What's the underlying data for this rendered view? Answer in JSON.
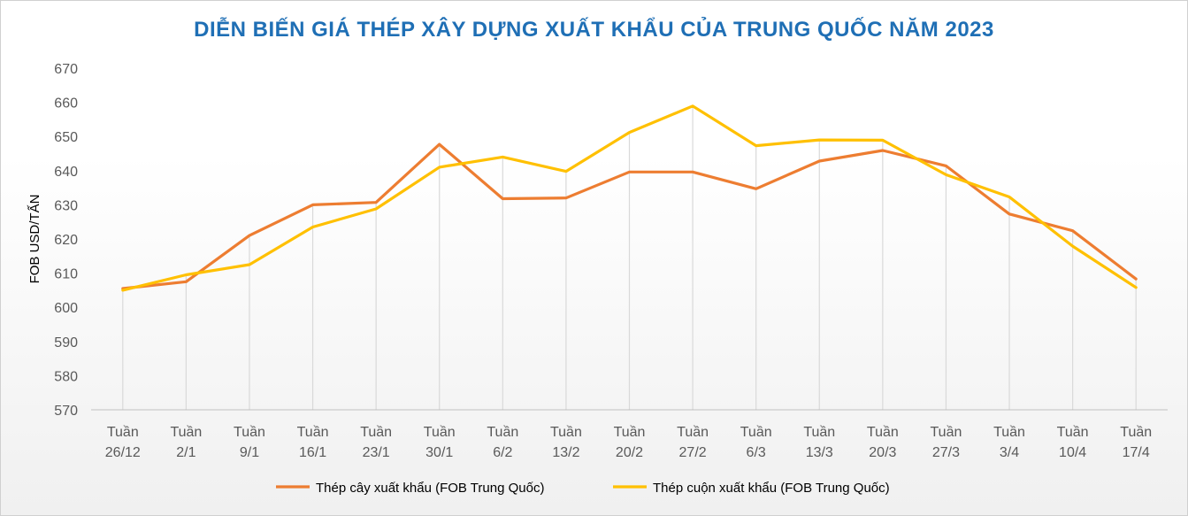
{
  "chart_data": {
    "type": "line",
    "title": "DIỄN BIẾN GIÁ THÉP XÂY DỰNG XUẤT KHẨU CỦA TRUNG QUỐC NĂM 2023",
    "xlabel": "",
    "ylabel": "FOB USD/TẤN",
    "ylim": [
      570,
      670
    ],
    "yticks": [
      "570",
      "580",
      "590",
      "600",
      "610",
      "620",
      "630",
      "640",
      "650",
      "660",
      "670"
    ],
    "categories": [
      [
        "Tuần",
        "26/12"
      ],
      [
        "Tuần",
        "2/1"
      ],
      [
        "Tuần",
        "9/1"
      ],
      [
        "Tuần",
        "16/1"
      ],
      [
        "Tuần",
        "23/1"
      ],
      [
        "Tuần",
        "30/1"
      ],
      [
        "Tuần",
        "6/2"
      ],
      [
        "Tuần",
        "13/2"
      ],
      [
        "Tuần",
        "20/2"
      ],
      [
        "Tuần",
        "27/2"
      ],
      [
        "Tuần",
        "6/3"
      ],
      [
        "Tuần",
        "13/3"
      ],
      [
        "Tuần",
        "20/3"
      ],
      [
        "Tuần",
        "27/3"
      ],
      [
        "Tuần",
        "3/4"
      ],
      [
        "Tuần",
        "10/4"
      ],
      [
        "Tuần",
        "17/4"
      ]
    ],
    "grid": "vertical",
    "legend": "bottom",
    "series": [
      {
        "name": "Thép cây xuất khẩu (FOB Trung Quốc)",
        "color": "#ed7d31",
        "values": [
          605.5,
          607.5,
          621,
          630,
          630.7,
          647.7,
          631.8,
          632,
          639.6,
          639.6,
          634.7,
          642.8,
          645.9,
          641.4,
          627.3,
          622.4,
          608.3
        ]
      },
      {
        "name": "Thép cuộn xuất khẩu (FOB Trung Quốc)",
        "color": "#ffc000",
        "values": [
          605,
          609.5,
          612.5,
          623.5,
          628.8,
          641,
          644,
          639.8,
          651.2,
          658.9,
          647.3,
          649,
          648.9,
          638.8,
          632.3,
          617.9,
          605.8
        ]
      }
    ]
  }
}
